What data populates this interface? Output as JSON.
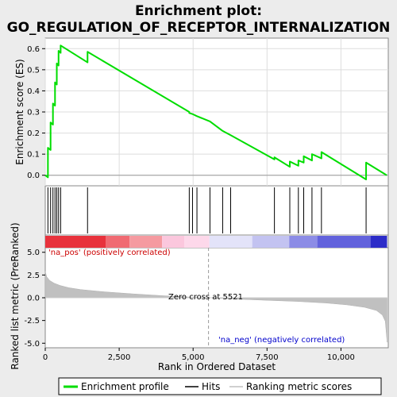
{
  "chart_data": {
    "type": "line",
    "title_line1": "Enrichment plot:",
    "title_line2": "GO_REGULATION_OF_RECEPTOR_INTERNALIZATION",
    "xlabel": "Rank in Ordered Dataset",
    "ylabel_top": "Enrichment score (ES)",
    "ylabel_bottom": "Ranked list metric (PreRanked)",
    "xlim": [
      0,
      11600
    ],
    "ylim_es": [
      -0.05,
      0.65
    ],
    "ylim_metric": [
      -5.5,
      5.5
    ],
    "x_ticks": [
      0,
      2500,
      5000,
      7500,
      10000
    ],
    "x_tick_labels": [
      "0",
      "2,500",
      "5,000",
      "7,500",
      "10,000"
    ],
    "es_ticks": [
      0.0,
      0.1,
      0.2,
      0.3,
      0.4,
      0.5,
      0.6
    ],
    "es_tick_labels": [
      "0.0",
      "0.1",
      "0.2",
      "0.3",
      "0.4",
      "0.5",
      "0.6"
    ],
    "metric_ticks": [
      5.0,
      2.5,
      0.0,
      -2.5,
      -5.0
    ],
    "metric_tick_labels": [
      "5.0",
      "2.5",
      "0.0",
      "-2.5",
      "-5.0"
    ],
    "hits": [
      90,
      180,
      260,
      330,
      390,
      450,
      520,
      1430,
      4870,
      4980,
      5130,
      5570,
      6000,
      6270,
      7750,
      8270,
      8560,
      8740,
      9020,
      9340,
      10850
    ],
    "es_curve": [
      [
        0,
        0.0
      ],
      [
        90,
        -0.01
      ],
      [
        90,
        0.13
      ],
      [
        180,
        0.12
      ],
      [
        180,
        0.25
      ],
      [
        260,
        0.24
      ],
      [
        260,
        0.34
      ],
      [
        330,
        0.33
      ],
      [
        330,
        0.44
      ],
      [
        390,
        0.43
      ],
      [
        390,
        0.53
      ],
      [
        450,
        0.52
      ],
      [
        450,
        0.59
      ],
      [
        520,
        0.58
      ],
      [
        520,
        0.615
      ],
      [
        1430,
        0.535
      ],
      [
        1430,
        0.585
      ],
      [
        4870,
        0.3
      ],
      [
        4870,
        0.295
      ],
      [
        4980,
        0.29
      ],
      [
        5130,
        0.28
      ],
      [
        5570,
        0.255
      ],
      [
        6000,
        0.21
      ],
      [
        6270,
        0.19
      ],
      [
        7750,
        0.075
      ],
      [
        7750,
        0.085
      ],
      [
        8270,
        0.04
      ],
      [
        8270,
        0.065
      ],
      [
        8560,
        0.045
      ],
      [
        8560,
        0.07
      ],
      [
        8740,
        0.06
      ],
      [
        8740,
        0.09
      ],
      [
        9020,
        0.07
      ],
      [
        9020,
        0.1
      ],
      [
        9340,
        0.08
      ],
      [
        9340,
        0.11
      ],
      [
        10850,
        -0.02
      ],
      [
        10850,
        0.06
      ],
      [
        11550,
        0.0
      ]
    ],
    "metric_profile": [
      [
        0,
        2.9
      ],
      [
        50,
        2.3
      ],
      [
        150,
        1.9
      ],
      [
        300,
        1.6
      ],
      [
        500,
        1.35
      ],
      [
        800,
        1.1
      ],
      [
        1200,
        0.9
      ],
      [
        2000,
        0.65
      ],
      [
        3000,
        0.42
      ],
      [
        4000,
        0.22
      ],
      [
        5000,
        0.06
      ],
      [
        5521,
        0.0
      ],
      [
        6500,
        -0.15
      ],
      [
        7500,
        -0.28
      ],
      [
        8500,
        -0.4
      ],
      [
        9500,
        -0.58
      ],
      [
        10200,
        -0.78
      ],
      [
        10800,
        -1.05
      ],
      [
        11200,
        -1.4
      ],
      [
        11400,
        -1.9
      ],
      [
        11500,
        -2.6
      ],
      [
        11560,
        -4.9
      ]
    ],
    "color_bands": [
      {
        "from": 0,
        "to": 2050,
        "color": "#e8323c"
      },
      {
        "from": 2050,
        "to": 2850,
        "color": "#f06a72"
      },
      {
        "from": 2850,
        "to": 3950,
        "color": "#f59aa0"
      },
      {
        "from": 3950,
        "to": 4700,
        "color": "#fbc7dd"
      },
      {
        "from": 4700,
        "to": 5550,
        "color": "#fdd8ea"
      },
      {
        "from": 5550,
        "to": 7000,
        "color": "#e3e3f9"
      },
      {
        "from": 7000,
        "to": 8250,
        "color": "#c3c3f1"
      },
      {
        "from": 8250,
        "to": 9200,
        "color": "#8c8ce6"
      },
      {
        "from": 9200,
        "to": 11000,
        "color": "#6262dc"
      },
      {
        "from": 11000,
        "to": 11560,
        "color": "#2c2cc8"
      }
    ],
    "zero_cross_label": "Zero cross at 5521",
    "zero_cross": 5521,
    "pos_label": "'na_pos' (positively correlated)",
    "neg_label": "'na_neg' (negatively correlated)",
    "legend": [
      {
        "name": "Enrichment profile",
        "color": "#00dd00"
      },
      {
        "name": "Hits",
        "color": "#000000"
      },
      {
        "name": "Ranking metric scores",
        "color": "#c0c0c0"
      }
    ]
  }
}
